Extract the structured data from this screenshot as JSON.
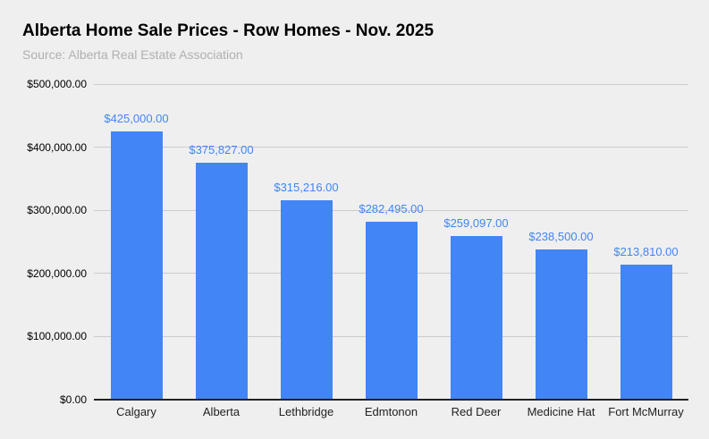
{
  "header": {
    "title": "Alberta Home Sale Prices - Row Homes - Nov. 2025",
    "source": "Source: Alberta Real Estate Association"
  },
  "colors": {
    "background": "#efefef",
    "bar": "#4285f4",
    "value_label": "#4285f4",
    "gridline": "#cccccc",
    "axis_line": "#222222",
    "title": "#000000",
    "source": "#b0b0b0",
    "tick_label": "#000000"
  },
  "chart_data": {
    "type": "bar",
    "title": "Alberta Home Sale Prices - Row Homes - Nov. 2025",
    "subtitle": "Source: Alberta Real Estate Association",
    "categories": [
      "Calgary",
      "Alberta",
      "Lethbridge",
      "Edmtonon",
      "Red Deer",
      "Medicine Hat",
      "Fort McMurray"
    ],
    "values": [
      425000,
      375827,
      315216,
      282495,
      259097,
      238500,
      213810
    ],
    "value_labels": [
      "$425,000.00",
      "$375,827.00",
      "$315,216.00",
      "$282,495.00",
      "$259,097.00",
      "$238,500.00",
      "$213,810.00"
    ],
    "xlabel": "",
    "ylabel": "",
    "ylim": [
      0,
      500000
    ],
    "ytick_interval": 100000,
    "ytick_labels": [
      "$0.00",
      "$100,000.00",
      "$200,000.00",
      "$300,000.00",
      "$400,000.00",
      "$500,000.00"
    ],
    "grid": true,
    "legend": "none"
  }
}
